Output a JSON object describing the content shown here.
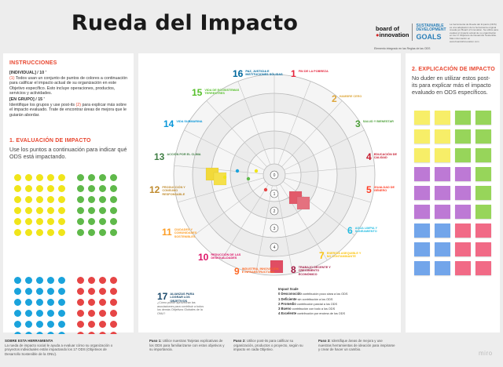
{
  "title": "Rueda del Impacto",
  "logos": {
    "board": "board of",
    "innovation": "innovation",
    "sdg_line1": "SUSTAINABLE",
    "sdg_line2": "DEVELOPMENT",
    "sdg_goals": "GOALS",
    "sub": "Elemento integrado en las Reglas de las ODS"
  },
  "header_text": "La herramienta de Rueda del Impacto (ODS) es una adaptación de la herramienta original creada por Board of Innovation. Se utiliza para evaluar el impacto actual de su organización en los 17 Objetivos de Desarrollo Sostenible. Más información en www.boardofinnovation.com",
  "instructions": {
    "title": "INSTRUCCIONES",
    "individual_label": "[INDIVIDUAL] / 10 '",
    "individual_num": "(1)",
    "individual_text": " Todos usan un conjunto de puntos de colores a continuación para calificar el impacto actual de su organización en este Objetivo específico. Esto incluye operaciones, productos, servicios y actividades.",
    "group_label": "[EN GRUPO] / 15 '",
    "group_text_a": "Identifique los grupos y use post-its ",
    "group_num": "(2)",
    "group_text_b": " para explicar más sobre el impacto evaluado. Trate de encontrar áreas de mejora que le guiarán abordar."
  },
  "evaluation": {
    "title": "1. EVALUACIÓN DE IMPACTO",
    "text": "Use los puntos a continuación para indicar qué ODS está impactando."
  },
  "explanation": {
    "title": "2. EXPLICACIÓN DE IMPACTO",
    "text": "No duder en utilizar estos post-its para explicar más el impacto evaluado en ODS específicos."
  },
  "sdgs": [
    {
      "n": "1",
      "label": "FIN DE LA POBREZA",
      "color": "#e5243b"
    },
    {
      "n": "2",
      "label": "HAMBRE CERO",
      "color": "#dda63a"
    },
    {
      "n": "3",
      "label": "SALUD Y BIENESTAR",
      "color": "#4c9f38"
    },
    {
      "n": "4",
      "label": "EDUCACIÓN DE CALIDAD",
      "color": "#c5192d"
    },
    {
      "n": "5",
      "label": "IGUALDAD DE GÉNERO",
      "color": "#ff3a21"
    },
    {
      "n": "6",
      "label": "AGUA LIMPIA Y SANEAMIENTO",
      "color": "#26bde2"
    },
    {
      "n": "7",
      "label": "ENERGÍA ASEQUIBLE Y NO CONTAMINANTE",
      "color": "#fcc30b"
    },
    {
      "n": "8",
      "label": "TRABAJO DECENTE Y CRECIMIENTO ECONÓMICO",
      "color": "#a21942"
    },
    {
      "n": "9",
      "label": "INDUSTRIA, INNOVACIÓN E INFRAESTRUCTURA",
      "color": "#fd6925"
    },
    {
      "n": "10",
      "label": "REDUCCIÓN DE LAS DESIGUALDADES",
      "color": "#dd1367"
    },
    {
      "n": "11",
      "label": "CIUDADES Y COMUNIDADES SOSTENIBLES",
      "color": "#fd9d24"
    },
    {
      "n": "12",
      "label": "PRODUCCIÓN Y CONSUMO RESPONSABLE",
      "color": "#bf8b2e"
    },
    {
      "n": "13",
      "label": "ACCIÓN POR EL CLIMA",
      "color": "#3f7e44"
    },
    {
      "n": "14",
      "label": "VIDA SUBMARINA",
      "color": "#0a97d9"
    },
    {
      "n": "15",
      "label": "VIDA DE ECOSISTEMAS TERRESTRES",
      "color": "#56c02b"
    },
    {
      "n": "16",
      "label": "PAZ, JUSTICIA E INSTITUCIONES SÓLIDAS",
      "color": "#00689d"
    },
    {
      "n": "17",
      "label": "ALIANZAS PARA LOGRAR LOS OBJETIVOS",
      "color": "#19486a"
    }
  ],
  "sdg17_desc": "¿Cómo puede aprovechar las asociaciones para contribuir a todos los demás Objetivos Globales de la ONU?",
  "scale": {
    "title": "Impact Scale",
    "items": [
      {
        "n": "0",
        "label": "Desconocido",
        "text": "contribución poco clara a los ODS"
      },
      {
        "n": "1",
        "label": "Deficiente",
        "text": "sin contribución a los ODS"
      },
      {
        "n": "2",
        "label": "Promedio",
        "text": "contribución parcial a los ODS"
      },
      {
        "n": "3",
        "label": "Bueno",
        "text": "contribución con todo a los ODS"
      },
      {
        "n": "4",
        "label": "Excelente",
        "text": "contribución por encima de los ODS"
      }
    ]
  },
  "wheel_scale": [
    "0",
    "1",
    "2",
    "3",
    "4"
  ],
  "dots": {
    "yellow": "#f0e51a",
    "green": "#5fb94a",
    "blue": "#1aa3dc",
    "red": "#e64545"
  },
  "notes": {
    "yellow": "#f7ee68",
    "green": "#97d55a",
    "purple": "#bd79d5",
    "blue": "#72a5ea",
    "pink": "#f16a86"
  },
  "footer": {
    "about_title": "SOBRE ESTA HERRAMIENTA",
    "about_text": "La rueda de impacto social le ayuda a evaluar cómo su organización o proyectos individuales están impactando los 17 ODS (Objetivos de Desarrollo Sostenible de la ONU).",
    "step1_label": "Paso 1:",
    "step1_text": " Utilice nuestras Tarjetas explicativas de los ODS para familiarizarse con estos objetivos y su importancia.",
    "step2_label": "Paso 2:",
    "step2_text": " Utilice post-its para calificar su organización, productos o proyecto, según su impacto en cada Objetivo.",
    "step3_label": "Paso 3:",
    "step3_text": " Identifique áreas de mejora y use nuestras herramientas de ideación para inspirarse y crear de hacer un cambio."
  },
  "miro": "miro"
}
